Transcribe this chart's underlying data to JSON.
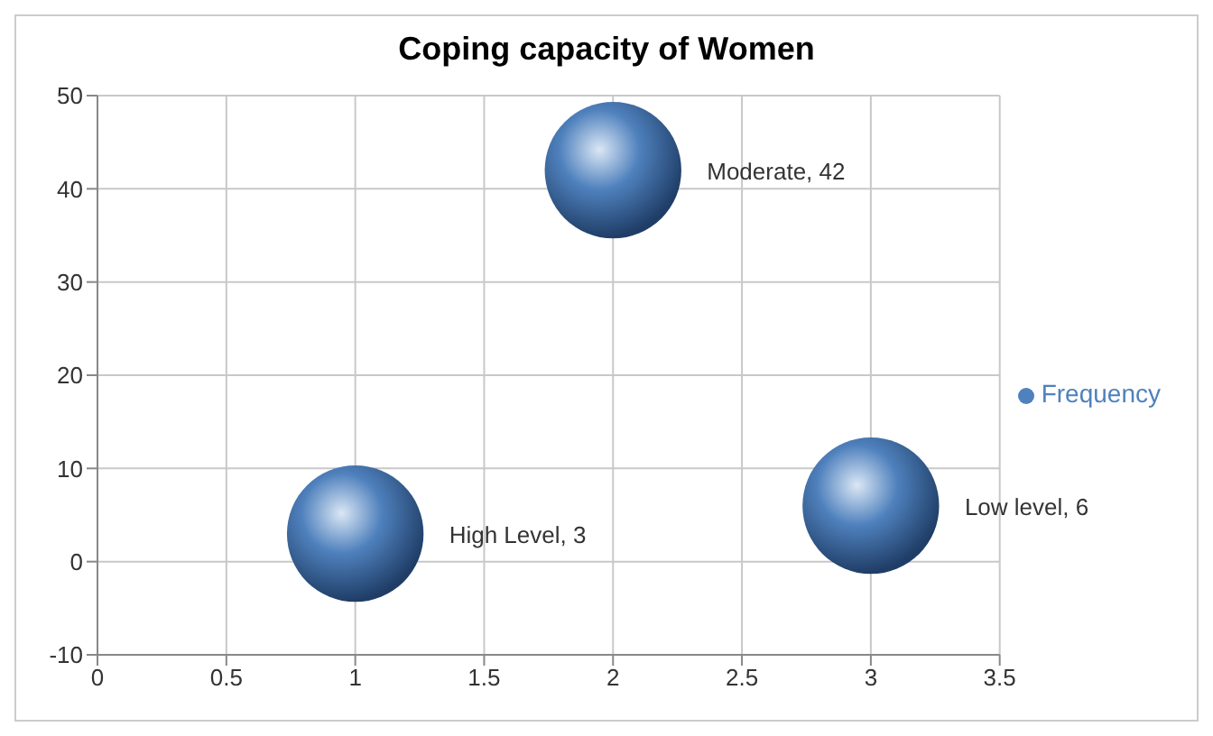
{
  "chart_data": {
    "type": "bubble",
    "title": "Coping capacity of Women",
    "x": [
      1,
      2,
      3
    ],
    "series": [
      {
        "name": "Frequency",
        "color": "#4f81bd",
        "values": [
          3,
          42,
          6
        ],
        "sizes": [
          1,
          1,
          1
        ],
        "value_labels": [
          "High Level, 3",
          "Moderate, 42",
          "Low level, 6"
        ]
      }
    ],
    "xlim": [
      0,
      3.5
    ],
    "xticks": [
      0,
      0.5,
      1,
      1.5,
      2,
      2.5,
      3,
      3.5
    ],
    "ylim": [
      -10,
      50
    ],
    "yticks": [
      -10,
      0,
      10,
      20,
      30,
      40,
      50
    ],
    "grid": true,
    "legend": "right"
  }
}
